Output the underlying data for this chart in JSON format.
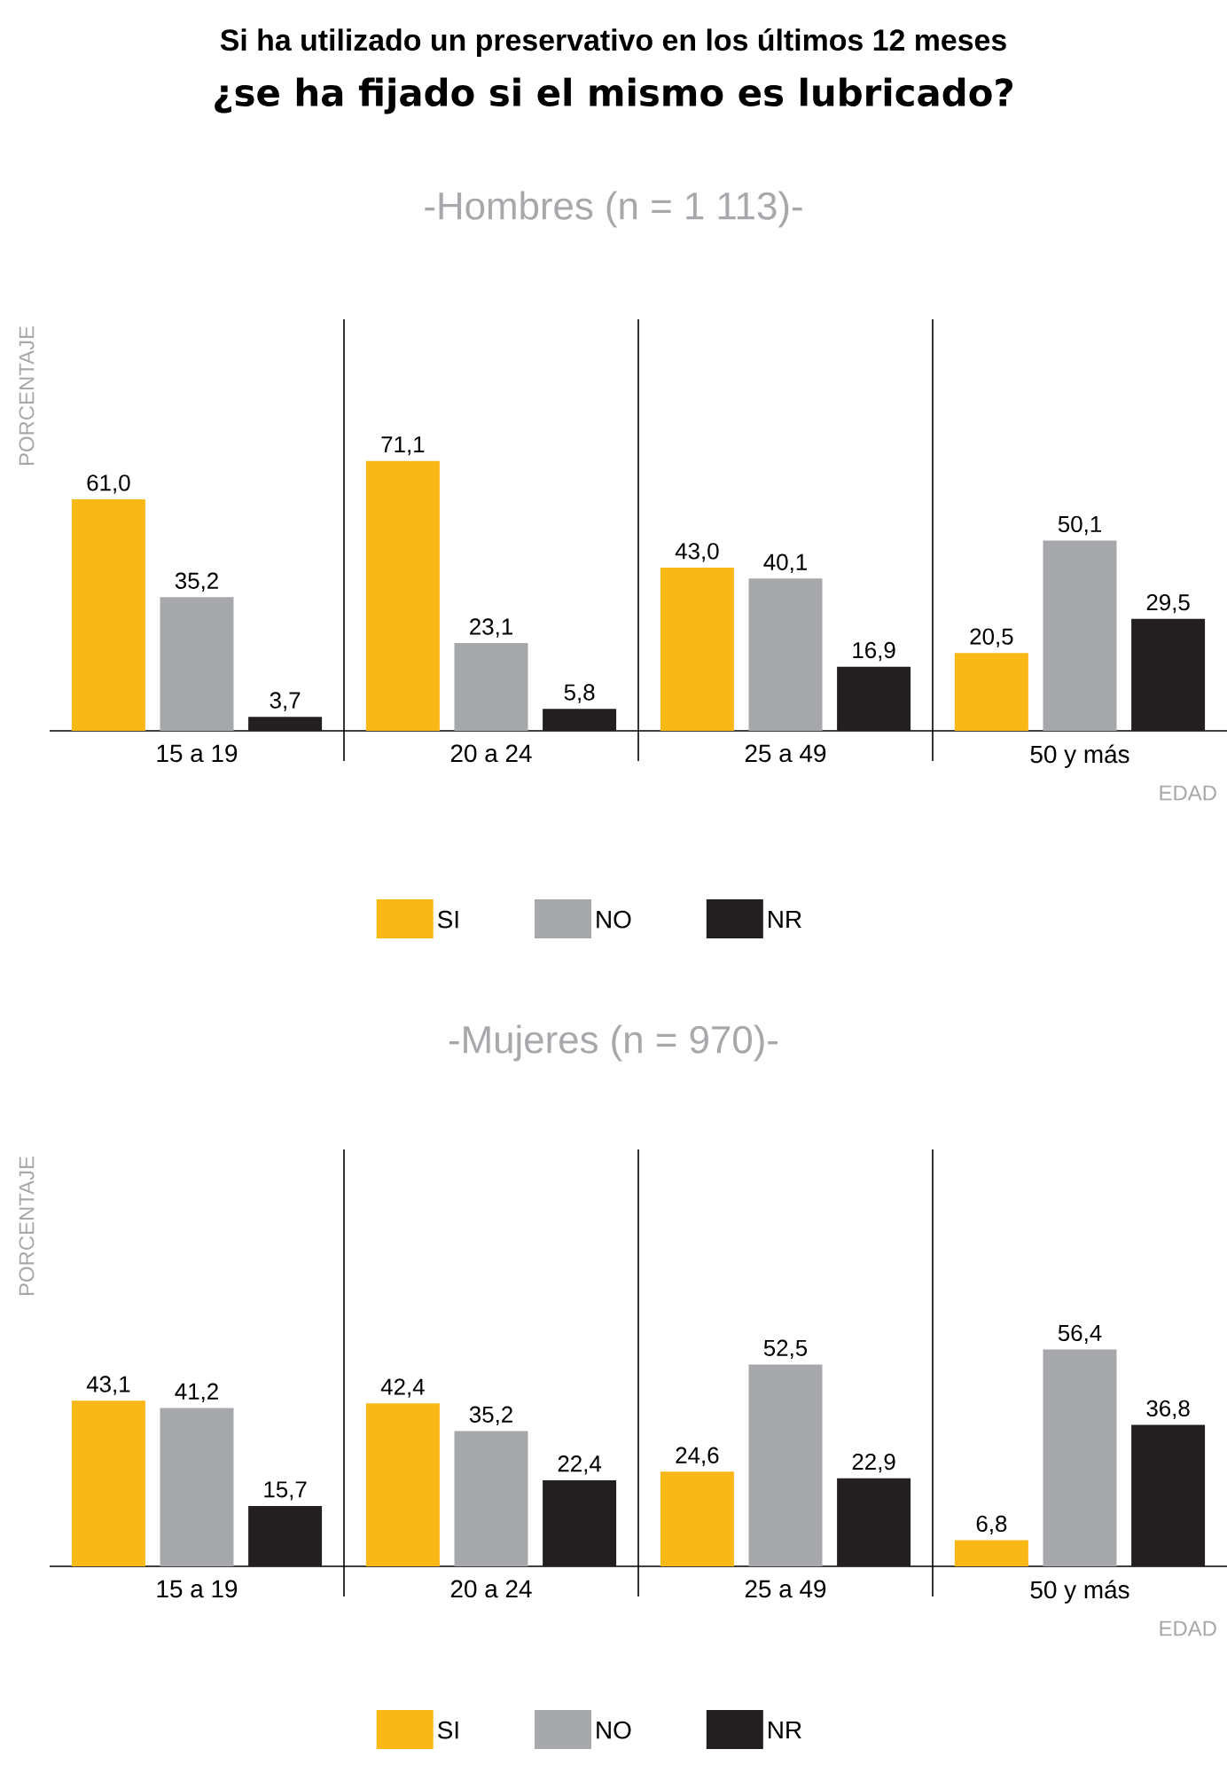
{
  "chart_data": [
    {
      "type": "bar",
      "title": "Si ha utilizado un preservativo en los últimos 12 meses",
      "subtitle": "¿se ha fijado si el mismo es lubricado?",
      "annotations": [
        "-Hombres (n = 1 113)-"
      ],
      "xlabel": "EDAD",
      "ylabel": "PORCENTAJE",
      "categories": [
        "15 a 19",
        "20 a 24",
        "25 a 49",
        "50 y más"
      ],
      "legend": "bottom",
      "series": [
        {
          "name": "SI",
          "color": "#f9b816",
          "values": [
            61.0,
            71.1,
            43.0,
            20.5
          ],
          "value_labels": [
            "61,0",
            "71,1",
            "43,0",
            "20,5"
          ]
        },
        {
          "name": "NO",
          "color": "#a7a8ab",
          "values": [
            35.2,
            23.1,
            40.1,
            50.1
          ],
          "value_labels": [
            "35,2",
            "23,1",
            "40,1",
            "50,1"
          ]
        },
        {
          "name": "NR",
          "color": "#231f20",
          "values": [
            3.7,
            5.8,
            16.9,
            29.5
          ],
          "value_labels": [
            "3,7",
            "5,8",
            "16,9",
            "29,5"
          ]
        }
      ]
    },
    {
      "type": "bar",
      "title": "-Mujeres (n = 970)-",
      "xlabel": "EDAD",
      "ylabel": "PORCENTAJE",
      "categories": [
        "15 a 19",
        "20 a 24",
        "25 a 49",
        "50 y más"
      ],
      "legend": "bottom",
      "series": [
        {
          "name": "SI",
          "color": "#f9b816",
          "values": [
            43.1,
            42.4,
            24.6,
            6.8
          ],
          "value_labels": [
            "43,1",
            "42,4",
            "24,6",
            "6,8"
          ]
        },
        {
          "name": "NO",
          "color": "#a7a8ab",
          "values": [
            41.2,
            35.2,
            52.5,
            56.4
          ],
          "value_labels": [
            "41,2",
            "35,2",
            "52,5",
            "56,4"
          ]
        },
        {
          "name": "NR",
          "color": "#231f20",
          "values": [
            15.7,
            22.4,
            22.9,
            36.8
          ],
          "value_labels": [
            "15,7",
            "22,4",
            "22,9",
            "36,8"
          ]
        }
      ]
    }
  ]
}
